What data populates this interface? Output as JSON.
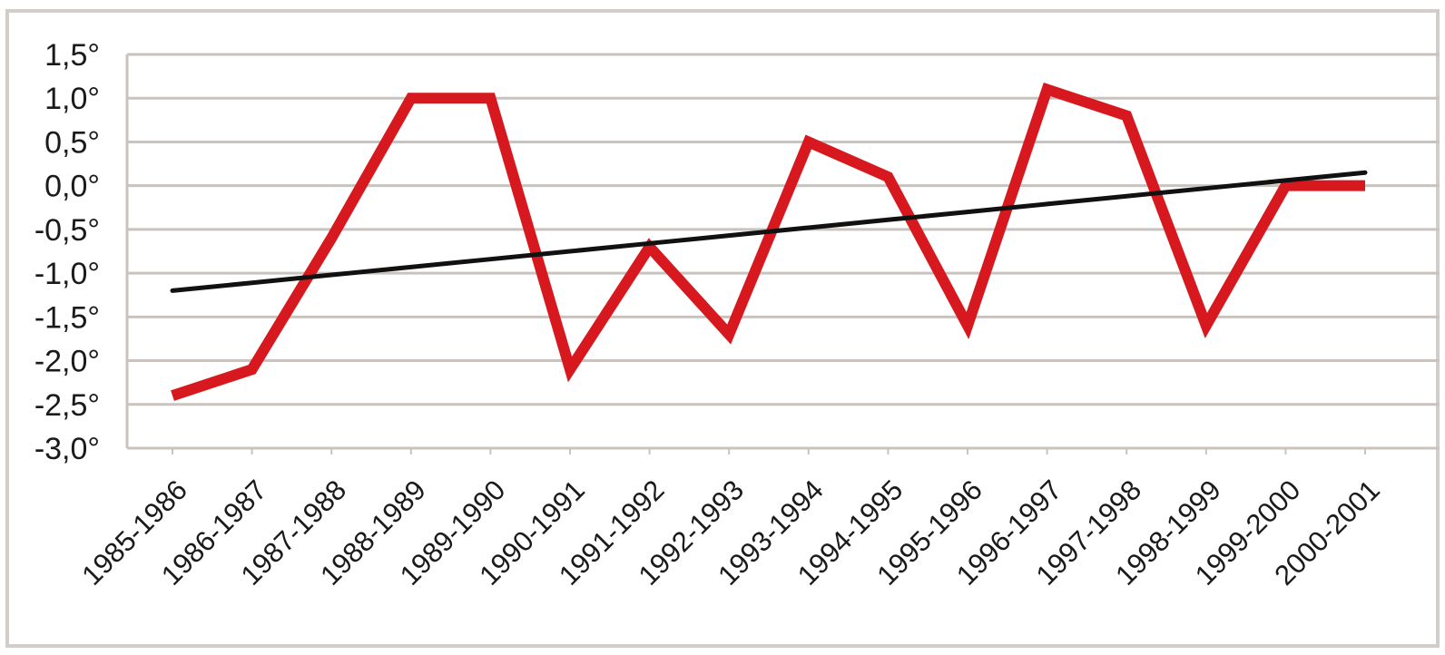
{
  "chart_data": {
    "type": "line",
    "title": "",
    "xlabel": "",
    "ylabel": "",
    "y_tick_labels": [
      "1,5°",
      "1,0°",
      "0,5°",
      "0,0°",
      "-0,5°",
      "-1,0°",
      "-1,5°",
      "-2,0°",
      "-2,5°",
      "-3,0°"
    ],
    "ylim": [
      -3.0,
      1.5
    ],
    "grid": true,
    "legend": "none",
    "categories": [
      "1985-1986",
      "1986-1987",
      "1987-1988",
      "1988-1989",
      "1989-1990",
      "1990-1991",
      "1991-1992",
      "1992-1993",
      "1993-1994",
      "1994-1995",
      "1995-1996",
      "1996-1997",
      "1997-1998",
      "1998-1999",
      "1999-2000",
      "2000-2001"
    ],
    "series": [
      {
        "values": [
          -2.4,
          -2.1,
          -0.6,
          1.0,
          1.0,
          -2.1,
          -0.7,
          -1.7,
          0.5,
          0.1,
          -1.6,
          1.1,
          0.8,
          -1.6,
          0.0,
          0.0
        ],
        "color": "#d7191f"
      },
      {
        "values": [
          -1.2,
          -1.11,
          -1.02,
          -0.93,
          -0.84,
          -0.75,
          -0.66,
          -0.57,
          -0.48,
          -0.39,
          -0.3,
          -0.21,
          -0.12,
          -0.03,
          0.06,
          0.15
        ],
        "color": "#111111"
      }
    ],
    "gridline_color": "#c9c3bf",
    "axis_color": "#c9c3bf"
  }
}
